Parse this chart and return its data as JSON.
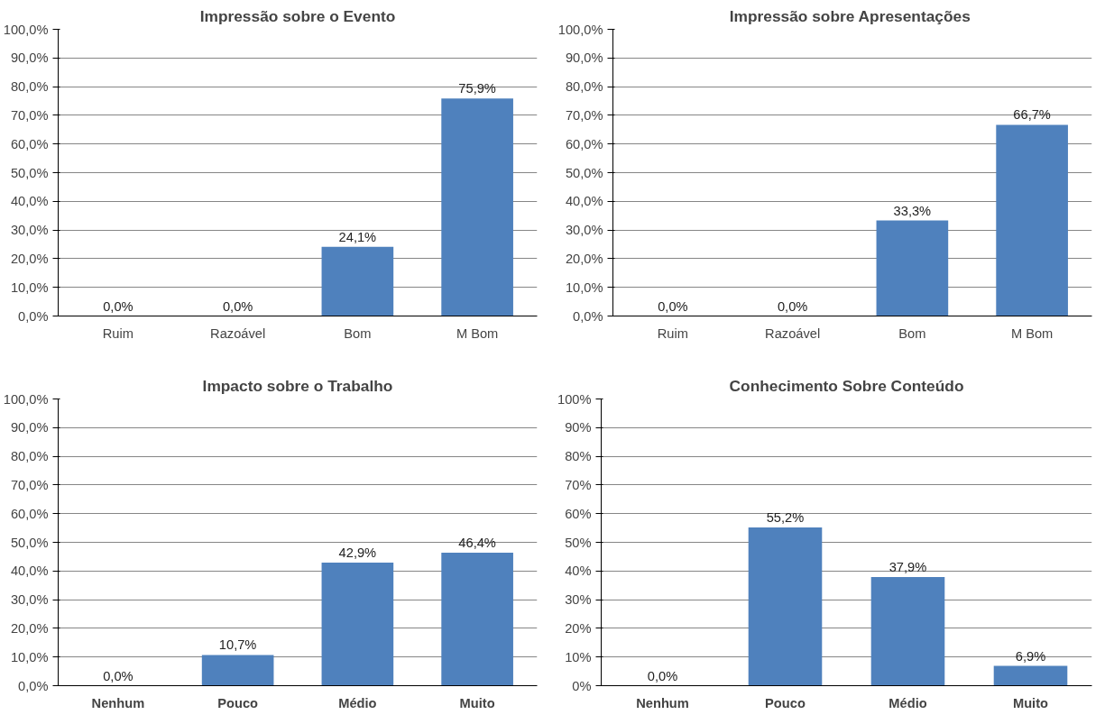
{
  "chart_data": [
    {
      "type": "bar",
      "title": "Impressão sobre o Evento",
      "categories": [
        "Ruim",
        "Razoável",
        "Bom",
        "M Bom"
      ],
      "values": [
        0,
        0,
        24.1,
        75.9
      ],
      "value_labels": [
        "0,0%",
        "0,0%",
        "24,1%",
        "75,9%"
      ],
      "color": "#4f81bd",
      "ylim": [
        0,
        100
      ],
      "yticks": [
        {
          "value": 0,
          "label": "0,0%"
        },
        {
          "value": 10,
          "label": "10,0%"
        },
        {
          "value": 20,
          "label": "20,0%"
        },
        {
          "value": 30,
          "label": "30,0%"
        },
        {
          "value": 40,
          "label": "40,0%"
        },
        {
          "value": 50,
          "label": "50,0%"
        },
        {
          "value": 60,
          "label": "60,0%"
        },
        {
          "value": 70,
          "label": "70,0%"
        },
        {
          "value": 80,
          "label": "80,0%"
        },
        {
          "value": 90,
          "label": "90,0%"
        },
        {
          "value": 100,
          "label": "100,0%"
        }
      ],
      "grid": "y"
    },
    {
      "type": "bar",
      "title": "Impressão sobre  Apresentações",
      "categories": [
        "Ruim",
        "Razoável",
        "Bom",
        "M Bom"
      ],
      "values": [
        0,
        0,
        33.3,
        66.7
      ],
      "value_labels": [
        "0,0%",
        "0,0%",
        "33,3%",
        "66,7%"
      ],
      "color": "#4f81bd",
      "ylim": [
        0,
        100
      ],
      "yticks": [
        {
          "value": 0,
          "label": "0,0%"
        },
        {
          "value": 10,
          "label": "10,0%"
        },
        {
          "value": 20,
          "label": "20,0%"
        },
        {
          "value": 30,
          "label": "30,0%"
        },
        {
          "value": 40,
          "label": "40,0%"
        },
        {
          "value": 50,
          "label": "50,0%"
        },
        {
          "value": 60,
          "label": "60,0%"
        },
        {
          "value": 70,
          "label": "70,0%"
        },
        {
          "value": 80,
          "label": "80,0%"
        },
        {
          "value": 90,
          "label": "90,0%"
        },
        {
          "value": 100,
          "label": "100,0%"
        }
      ],
      "grid": "y"
    },
    {
      "type": "bar",
      "title": "Impacto sobre o Trabalho",
      "categories": [
        "Nenhum",
        "Pouco",
        "Médio",
        "Muito"
      ],
      "values": [
        0,
        10.7,
        42.9,
        46.4
      ],
      "value_labels": [
        "0,0%",
        "10,7%",
        "42,9%",
        "46,4%"
      ],
      "color": "#4f81bd",
      "ylim": [
        0,
        100
      ],
      "yticks": [
        {
          "value": 0,
          "label": "0,0%"
        },
        {
          "value": 10,
          "label": "10,0%"
        },
        {
          "value": 20,
          "label": "20,0%"
        },
        {
          "value": 30,
          "label": "30,0%"
        },
        {
          "value": 40,
          "label": "40,0%"
        },
        {
          "value": 50,
          "label": "50,0%"
        },
        {
          "value": 60,
          "label": "60,0%"
        },
        {
          "value": 70,
          "label": "70,0%"
        },
        {
          "value": 80,
          "label": "80,0%"
        },
        {
          "value": 90,
          "label": "90,0%"
        },
        {
          "value": 100,
          "label": "100,0%"
        }
      ],
      "grid": "y"
    },
    {
      "type": "bar",
      "title": "Conhecimento Sobre Conteúdo",
      "categories": [
        "Nenhum",
        "Pouco",
        "Médio",
        "Muito"
      ],
      "values": [
        0,
        55.2,
        37.9,
        6.9
      ],
      "value_labels": [
        "0,0%",
        "55,2%",
        "37,9%",
        "6,9%"
      ],
      "color": "#4f81bd",
      "ylim": [
        0,
        100
      ],
      "yticks": [
        {
          "value": 0,
          "label": "0%"
        },
        {
          "value": 10,
          "label": "10%"
        },
        {
          "value": 20,
          "label": "20%"
        },
        {
          "value": 30,
          "label": "30%"
        },
        {
          "value": 40,
          "label": "40%"
        },
        {
          "value": 50,
          "label": "50%"
        },
        {
          "value": 60,
          "label": "60%"
        },
        {
          "value": 70,
          "label": "70%"
        },
        {
          "value": 80,
          "label": "80%"
        },
        {
          "value": 90,
          "label": "90%"
        },
        {
          "value": 100,
          "label": "100%"
        }
      ],
      "grid": "y"
    }
  ]
}
